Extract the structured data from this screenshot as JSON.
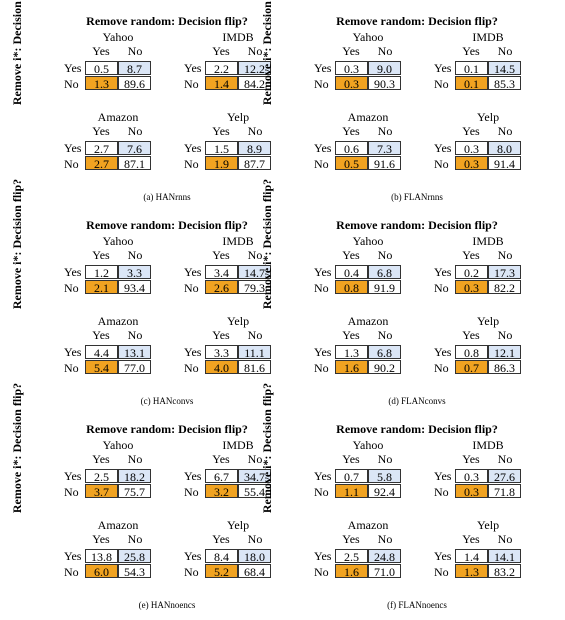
{
  "colors": {
    "diag_yes_no": "#dbe6f6",
    "no_yes": "#f1a321",
    "border": "#333333"
  },
  "panels": [
    {
      "title": "Remove random: Decision flip?",
      "ylabel": "Remove i*: Decision flip?",
      "caption": "(a) HANrnns",
      "matrices": [
        {
          "dataset": "Yahoo",
          "col_yes": "Yes",
          "col_no": "No",
          "row_yes": "Yes",
          "row_no": "No",
          "cells": [
            "0.5",
            "8.7",
            "1.3",
            "89.6"
          ]
        },
        {
          "dataset": "IMDB",
          "col_yes": "Yes",
          "col_no": "No",
          "row_yes": "Yes",
          "row_no": "No",
          "cells": [
            "2.2",
            "12.2",
            "1.4",
            "84.2"
          ]
        },
        {
          "dataset": "Amazon",
          "col_yes": "Yes",
          "col_no": "No",
          "row_yes": "Yes",
          "row_no": "No",
          "cells": [
            "2.7",
            "7.6",
            "2.7",
            "87.1"
          ]
        },
        {
          "dataset": "Yelp",
          "col_yes": "Yes",
          "col_no": "No",
          "row_yes": "Yes",
          "row_no": "No",
          "cells": [
            "1.5",
            "8.9",
            "1.9",
            "87.7"
          ]
        }
      ]
    },
    {
      "title": "Remove random: Decision flip?",
      "ylabel": "Remove i*: Decision flip?",
      "caption": "(b) FLANrnns",
      "matrices": [
        {
          "dataset": "Yahoo",
          "col_yes": "Yes",
          "col_no": "No",
          "row_yes": "Yes",
          "row_no": "No",
          "cells": [
            "0.3",
            "9.0",
            "0.3",
            "90.3"
          ]
        },
        {
          "dataset": "IMDB",
          "col_yes": "Yes",
          "col_no": "No",
          "row_yes": "Yes",
          "row_no": "No",
          "cells": [
            "0.1",
            "14.5",
            "0.1",
            "85.3"
          ]
        },
        {
          "dataset": "Amazon",
          "col_yes": "Yes",
          "col_no": "No",
          "row_yes": "Yes",
          "row_no": "No",
          "cells": [
            "0.6",
            "7.3",
            "0.5",
            "91.6"
          ]
        },
        {
          "dataset": "Yelp",
          "col_yes": "Yes",
          "col_no": "No",
          "row_yes": "Yes",
          "row_no": "No",
          "cells": [
            "0.3",
            "8.0",
            "0.3",
            "91.4"
          ]
        }
      ]
    },
    {
      "title": "Remove random: Decision flip?",
      "ylabel": "Remove i*: Decision flip?",
      "caption": "(c) HANconvs",
      "matrices": [
        {
          "dataset": "Yahoo",
          "col_yes": "Yes",
          "col_no": "No",
          "row_yes": "Yes",
          "row_no": "No",
          "cells": [
            "1.2",
            "3.3",
            "2.1",
            "93.4"
          ]
        },
        {
          "dataset": "IMDB",
          "col_yes": "Yes",
          "col_no": "No",
          "row_yes": "Yes",
          "row_no": "No",
          "cells": [
            "3.4",
            "14.7",
            "2.6",
            "79.3"
          ]
        },
        {
          "dataset": "Amazon",
          "col_yes": "Yes",
          "col_no": "No",
          "row_yes": "Yes",
          "row_no": "No",
          "cells": [
            "4.4",
            "13.1",
            "5.4",
            "77.0"
          ]
        },
        {
          "dataset": "Yelp",
          "col_yes": "Yes",
          "col_no": "No",
          "row_yes": "Yes",
          "row_no": "No",
          "cells": [
            "3.3",
            "11.1",
            "4.0",
            "81.6"
          ]
        }
      ]
    },
    {
      "title": "Remove random: Decision flip?",
      "ylabel": "Remove i*: Decision flip?",
      "caption": "(d) FLANconvs",
      "matrices": [
        {
          "dataset": "Yahoo",
          "col_yes": "Yes",
          "col_no": "No",
          "row_yes": "Yes",
          "row_no": "No",
          "cells": [
            "0.4",
            "6.8",
            "0.8",
            "91.9"
          ]
        },
        {
          "dataset": "IMDB",
          "col_yes": "Yes",
          "col_no": "No",
          "row_yes": "Yes",
          "row_no": "No",
          "cells": [
            "0.2",
            "17.3",
            "0.3",
            "82.2"
          ]
        },
        {
          "dataset": "Amazon",
          "col_yes": "Yes",
          "col_no": "No",
          "row_yes": "Yes",
          "row_no": "No",
          "cells": [
            "1.3",
            "6.8",
            "1.6",
            "90.2"
          ]
        },
        {
          "dataset": "Yelp",
          "col_yes": "Yes",
          "col_no": "No",
          "row_yes": "Yes",
          "row_no": "No",
          "cells": [
            "0.8",
            "12.1",
            "0.7",
            "86.3"
          ]
        }
      ]
    },
    {
      "title": "Remove random: Decision flip?",
      "ylabel": "Remove i*: Decision flip?",
      "caption": "(e) HANnoencs",
      "matrices": [
        {
          "dataset": "Yahoo",
          "col_yes": "Yes",
          "col_no": "No",
          "row_yes": "Yes",
          "row_no": "No",
          "cells": [
            "2.5",
            "18.2",
            "3.7",
            "75.7"
          ]
        },
        {
          "dataset": "IMDB",
          "col_yes": "Yes",
          "col_no": "No",
          "row_yes": "Yes",
          "row_no": "No",
          "cells": [
            "6.7",
            "34.7",
            "3.2",
            "55.4"
          ]
        },
        {
          "dataset": "Amazon",
          "col_yes": "Yes",
          "col_no": "No",
          "row_yes": "Yes",
          "row_no": "No",
          "cells": [
            "13.8",
            "25.8",
            "6.0",
            "54.3"
          ]
        },
        {
          "dataset": "Yelp",
          "col_yes": "Yes",
          "col_no": "No",
          "row_yes": "Yes",
          "row_no": "No",
          "cells": [
            "8.4",
            "18.0",
            "5.2",
            "68.4"
          ]
        }
      ]
    },
    {
      "title": "Remove random: Decision flip?",
      "ylabel": "Remove i*: Decision flip?",
      "caption": "(f) FLANnoencs",
      "matrices": [
        {
          "dataset": "Yahoo",
          "col_yes": "Yes",
          "col_no": "No",
          "row_yes": "Yes",
          "row_no": "No",
          "cells": [
            "0.7",
            "5.8",
            "1.1",
            "92.4"
          ]
        },
        {
          "dataset": "IMDB",
          "col_yes": "Yes",
          "col_no": "No",
          "row_yes": "Yes",
          "row_no": "No",
          "cells": [
            "0.3",
            "27.6",
            "0.3",
            "71.8"
          ]
        },
        {
          "dataset": "Amazon",
          "col_yes": "Yes",
          "col_no": "No",
          "row_yes": "Yes",
          "row_no": "No",
          "cells": [
            "2.5",
            "24.8",
            "1.6",
            "71.0"
          ]
        },
        {
          "dataset": "Yelp",
          "col_yes": "Yes",
          "col_no": "No",
          "row_yes": "Yes",
          "row_no": "No",
          "cells": [
            "1.4",
            "14.1",
            "1.3",
            "83.2"
          ]
        }
      ]
    }
  ]
}
